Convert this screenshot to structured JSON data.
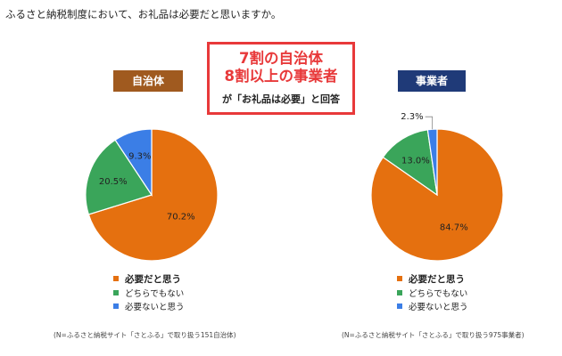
{
  "question": "ふるさと納税制度において、お礼品は必要だと思いますか。",
  "headline": {
    "line1": "7割の自治体",
    "line2": "8割以上の事業者",
    "line3": "が「お礼品は必要」と回答"
  },
  "colors": {
    "orange": "#e5700f",
    "green": "#3aa55a",
    "blue": "#3b7ee6",
    "red": "#e8393a"
  },
  "chart_data": [
    {
      "type": "pie",
      "title": "自治体",
      "series": [
        {
          "name": "必要だと思う",
          "value": 70.2,
          "label": "70.2%"
        },
        {
          "name": "どちらでもない",
          "value": 20.5,
          "label": "20.5%"
        },
        {
          "name": "必要ないと思う",
          "value": 9.3,
          "label": "9.3%"
        }
      ],
      "legend": [
        "必要だと思う",
        "どちらでもない",
        "必要ないと思う"
      ],
      "legend_position": "bottom",
      "note": "(N=ふるさと納税サイト「さとふる」で取り扱う151自治体)"
    },
    {
      "type": "pie",
      "title": "事業者",
      "series": [
        {
          "name": "必要だと思う",
          "value": 84.7,
          "label": "84.7%"
        },
        {
          "name": "どちらでもない",
          "value": 13.0,
          "label": "13.0%"
        },
        {
          "name": "必要ないと思う",
          "value": 2.3,
          "label": "2.3%"
        }
      ],
      "legend": [
        "必要だと思う",
        "どちらでもない",
        "必要ないと思う"
      ],
      "legend_position": "bottom",
      "note": "(N=ふるさと納税サイト「さとふる」で取り扱う975事業者)"
    }
  ]
}
